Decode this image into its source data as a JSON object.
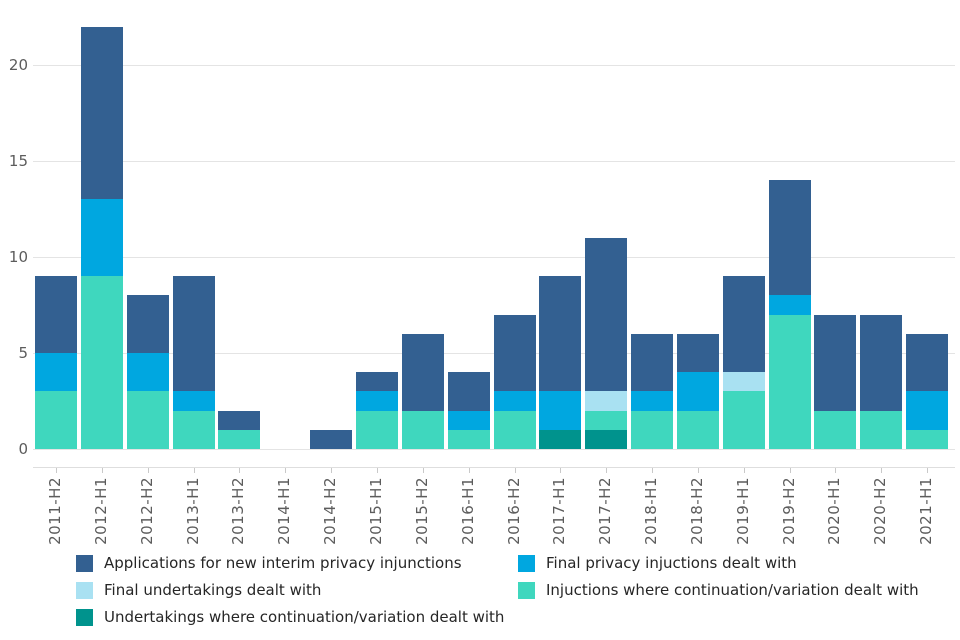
{
  "chart_data": {
    "type": "bar",
    "stacked": true,
    "title": "",
    "xlabel": "",
    "ylabel": "",
    "categories": [
      "2011-H2",
      "2012-H1",
      "2012-H2",
      "2013-H1",
      "2013-H2",
      "2014-H1",
      "2014-H2",
      "2015-H1",
      "2015-H2",
      "2016-H1",
      "2016-H2",
      "2017-H1",
      "2017-H2",
      "2018-H1",
      "2018-H2",
      "2019-H1",
      "2019-H2",
      "2020-H1",
      "2020-H2",
      "2021-H1"
    ],
    "series": [
      {
        "name": "Undertakings where continuation/variation dealt with",
        "color": "#00938D",
        "values": [
          0,
          0,
          0,
          0,
          0,
          0,
          0,
          0,
          0,
          0,
          0,
          1,
          1,
          0,
          0,
          0,
          0,
          0,
          0,
          0
        ]
      },
      {
        "name": "Injuctions where continuation/variation dealt with",
        "color": "#3FD7BE",
        "values": [
          3,
          9,
          3,
          2,
          1,
          0,
          0,
          2,
          2,
          1,
          2,
          0,
          1,
          2,
          2,
          3,
          7,
          2,
          2,
          1
        ]
      },
      {
        "name": "Final undertakings dealt with",
        "color": "#A9E1F2",
        "values": [
          0,
          0,
          0,
          0,
          0,
          0,
          0,
          0,
          0,
          0,
          0,
          0,
          1,
          0,
          0,
          1,
          0,
          0,
          0,
          0
        ]
      },
      {
        "name": "Final privacy injuctions dealt with",
        "color": "#00A7E0",
        "values": [
          2,
          4,
          2,
          1,
          0,
          0,
          0,
          1,
          0,
          1,
          1,
          2,
          0,
          1,
          2,
          0,
          1,
          0,
          0,
          2
        ]
      },
      {
        "name": "Applications for new interim privacy injunctions",
        "color": "#336091",
        "values": [
          4,
          9,
          3,
          6,
          1,
          0,
          1,
          1,
          4,
          2,
          4,
          6,
          8,
          3,
          2,
          5,
          6,
          5,
          5,
          3
        ]
      }
    ],
    "totals": [
      9,
      22,
      8,
      9,
      2,
      0,
      1,
      4,
      6,
      4,
      7,
      9,
      11,
      6,
      6,
      9,
      14,
      7,
      7,
      6
    ],
    "ylim": [
      0,
      22
    ],
    "yticks": [
      0,
      5,
      10,
      15,
      20
    ],
    "grid": "horizontal",
    "legend_position": "bottom",
    "legend_columns": {
      "left": [
        "Applications for new interim privacy injunctions",
        "Final undertakings dealt with",
        "Undertakings where continuation/variation dealt with"
      ],
      "right": [
        "Final privacy injuctions dealt with",
        "Injuctions where continuation/variation dealt with"
      ]
    }
  }
}
